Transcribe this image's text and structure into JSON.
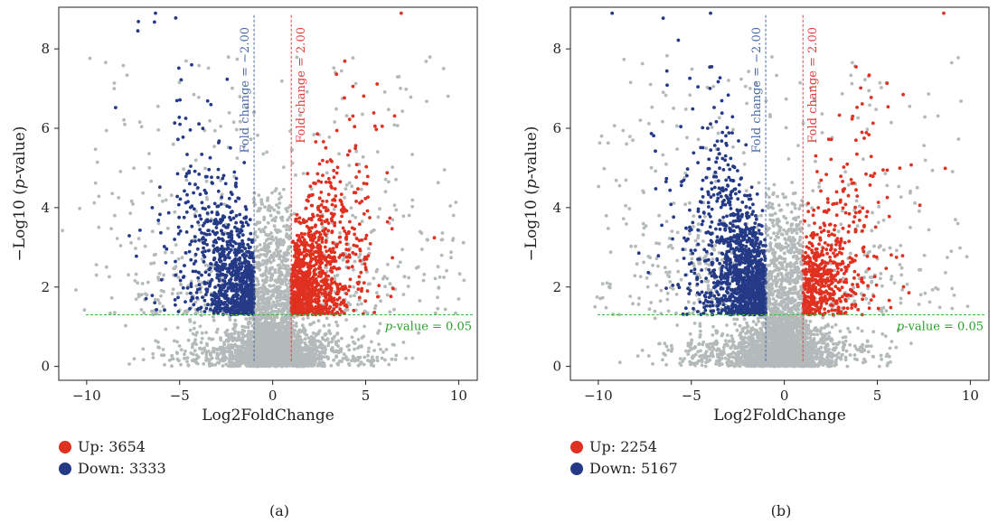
{
  "colors": {
    "up": "#e03020",
    "down": "#253a86",
    "ns": "#b4b9b9",
    "fc_up_line": "#e04040",
    "fc_down_line": "#4a6aa8",
    "pval_line": "#3cbf3c"
  },
  "chart_data": [
    {
      "type": "scatter",
      "caption": "(a)",
      "xlabel": "Log2FoldChange",
      "ylabel": "−Log10 (p-value)",
      "xlim": [
        -11.5,
        11
      ],
      "ylim": [
        -0.35,
        9.05
      ],
      "xticks": [
        -10,
        -5,
        0,
        5,
        10
      ],
      "xtick_labels": [
        "−10",
        "−5",
        "0",
        "5",
        "10"
      ],
      "yticks": [
        0,
        2,
        4,
        6,
        8
      ],
      "ytick_labels": [
        "0",
        "2",
        "4",
        "6",
        "8"
      ],
      "grid": false,
      "thresholds": {
        "fc_down": -1,
        "fc_up": 1,
        "pval": 1.3,
        "fc_down_label": "Fold change = −2.00",
        "fc_up_label": "Fold change = 2.00",
        "pval_label_prefix": "p",
        "pval_label_suffix": "-value = 0.05"
      },
      "legend": [
        {
          "name": "Up: 3654",
          "color_key": "up"
        },
        {
          "name": "Down: 3333",
          "color_key": "down"
        }
      ],
      "point_counts": {
        "up": 3654,
        "down": 3333
      },
      "x_range": [
        -10,
        10.8
      ],
      "y_max": 8.95
    },
    {
      "type": "scatter",
      "caption": "(b)",
      "xlabel": "Log2FoldChange",
      "ylabel": "−Log10 (p-value)",
      "xlim": [
        -11.5,
        11
      ],
      "ylim": [
        -0.35,
        9.05
      ],
      "xticks": [
        -10,
        -5,
        0,
        5,
        10
      ],
      "xtick_labels": [
        "−10",
        "−5",
        "0",
        "5",
        "10"
      ],
      "yticks": [
        0,
        2,
        4,
        6,
        8
      ],
      "ytick_labels": [
        "0",
        "2",
        "4",
        "6",
        "8"
      ],
      "grid": false,
      "thresholds": {
        "fc_down": -1,
        "fc_up": 1,
        "pval": 1.3,
        "fc_down_label": "Fold change = −2.00",
        "fc_up_label": "Fold change = 2.00",
        "pval_label_prefix": "p",
        "pval_label_suffix": "-value = 0.05"
      },
      "legend": [
        {
          "name": "Up: 2254",
          "color_key": "up"
        },
        {
          "name": "Down: 5167",
          "color_key": "down"
        }
      ],
      "point_counts": {
        "up": 2254,
        "down": 5167
      },
      "x_range": [
        -10,
        10.8
      ],
      "y_max": 8.95
    }
  ]
}
